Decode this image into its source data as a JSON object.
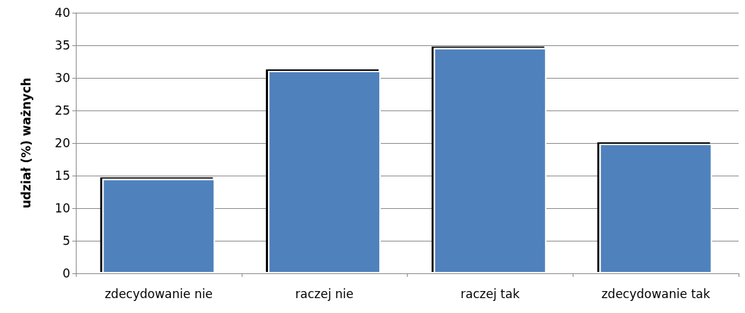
{
  "chart_data": {
    "type": "bar",
    "ylabel": "udział (%) ważnych",
    "categories": [
      "zdecydowanie nie",
      "raczej nie",
      "raczej tak",
      "zdecydowanie tak"
    ],
    "values": [
      14.5,
      31.1,
      34.6,
      19.9
    ],
    "color": "#4f81bd",
    "ylim": [
      0,
      40
    ],
    "yticks": [
      0,
      5,
      10,
      15,
      20,
      25,
      30,
      35,
      40
    ],
    "grid": "y"
  }
}
